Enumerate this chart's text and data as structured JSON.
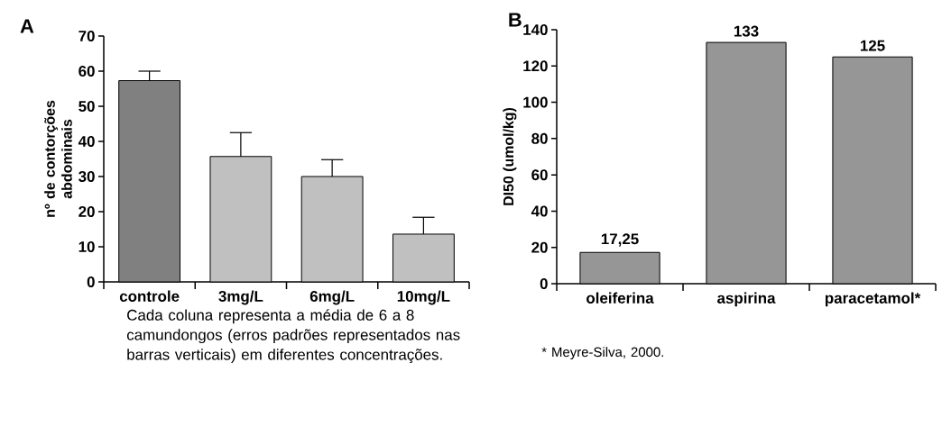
{
  "chart_data": [
    {
      "type": "bar",
      "title": "A",
      "categories": [
        "controle",
        "3mg/L",
        "6mg/L",
        "10mg/L"
      ],
      "values": [
        57.3,
        35.7,
        30,
        13.6
      ],
      "colors": [
        "#808080",
        "#c0c0c0",
        "#c0c0c0",
        "#c0c0c0"
      ],
      "errors": [
        [
          57.3,
          60
        ],
        [
          35.7,
          42.5
        ],
        [
          30,
          34.8
        ],
        [
          13.6,
          18.4
        ]
      ],
      "ylabel": "nº de contorções abdominais",
      "ylim": [
        0,
        70
      ],
      "yticks": [
        0,
        10,
        20,
        30,
        40,
        50,
        60,
        70
      ],
      "annotations": [
        "Cada coluna representa a média de 6 a 8 camundongos (erros padrões representados nas barras verticais) em diferentes concentrações."
      ]
    },
    {
      "type": "bar",
      "title": "B",
      "categories": [
        "oleiferina",
        "aspirina",
        "paracetamol*"
      ],
      "values": [
        17.25,
        133,
        125
      ],
      "value_labels": [
        "17,25",
        "133",
        "125"
      ],
      "color": "#969696",
      "ylabel": "DI50 (umol/kg)",
      "ylim": [
        0,
        140
      ],
      "yticks": [
        0,
        20,
        40,
        60,
        80,
        100,
        120,
        140
      ],
      "annotations": [
        "* Meyre-Silva, 2000."
      ]
    }
  ]
}
